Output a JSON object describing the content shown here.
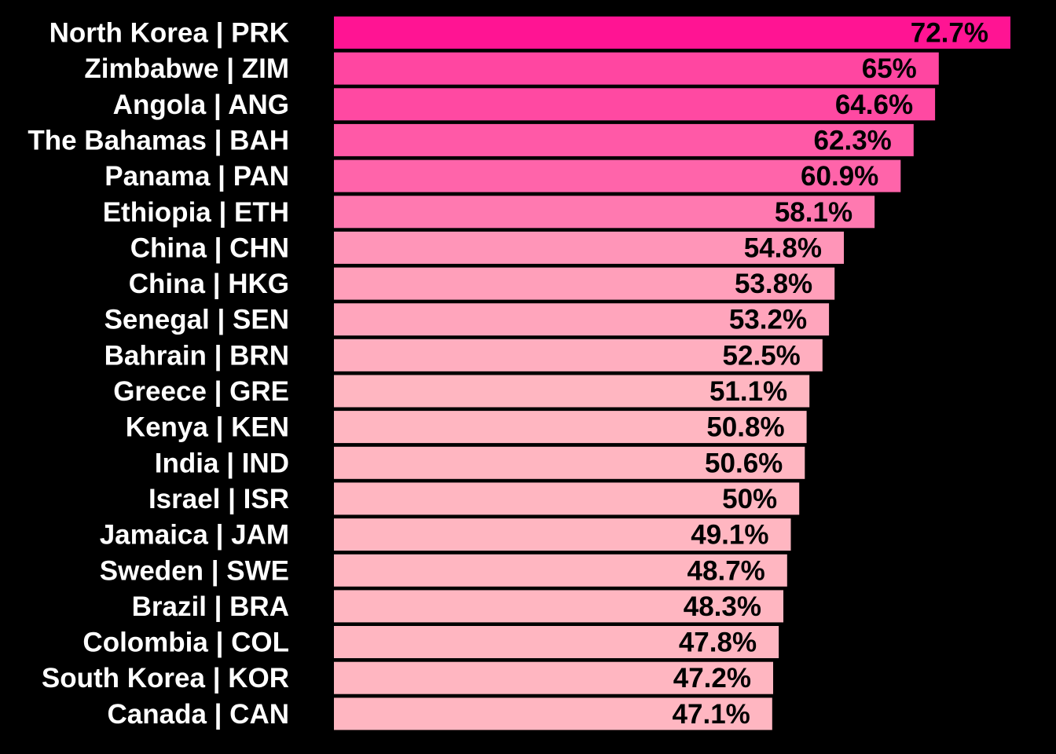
{
  "chart_data": {
    "type": "bar",
    "orientation": "horizontal",
    "title": "",
    "xlabel": "",
    "ylabel": "",
    "xlim": [
      0,
      72.7
    ],
    "grid": false,
    "legend": "none",
    "background_color": "#000000",
    "color_scale": {
      "low": "#ffb6c1",
      "high": "#ff1493"
    },
    "categories": [
      "North Korea | PRK",
      "Zimbabwe | ZIM",
      "Angola | ANG",
      "The Bahamas | BAH",
      "Panama | PAN",
      "Ethiopia | ETH",
      "China | CHN",
      "China | HKG",
      "Senegal | SEN",
      "Bahrain | BRN",
      "Greece | GRE",
      "Kenya | KEN",
      "India | IND",
      "Israel | ISR",
      "Jamaica | JAM",
      "Sweden | SWE",
      "Brazil | BRA",
      "Colombia | COL",
      "South Korea | KOR",
      "Canada | CAN"
    ],
    "values": [
      72.7,
      65,
      64.6,
      62.3,
      60.9,
      58.1,
      54.8,
      53.8,
      53.2,
      52.5,
      51.1,
      50.8,
      50.6,
      50,
      49.1,
      48.7,
      48.3,
      47.8,
      47.2,
      47.1
    ],
    "value_labels": [
      "72.7%",
      "65%",
      "64.6%",
      "62.3%",
      "60.9%",
      "58.1%",
      "54.8%",
      "53.8%",
      "53.2%",
      "52.5%",
      "51.1%",
      "50.8%",
      "50.6%",
      "50%",
      "49.1%",
      "48.7%",
      "48.3%",
      "47.8%",
      "47.2%",
      "47.1%"
    ]
  }
}
